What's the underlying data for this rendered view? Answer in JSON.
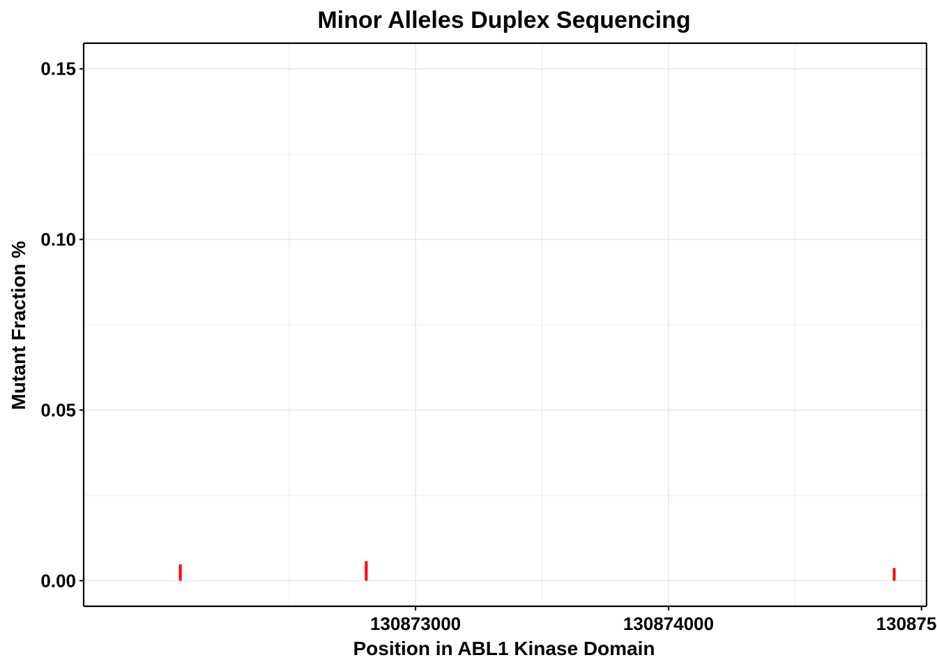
{
  "chart_data": {
    "type": "bar",
    "title": "Minor Alleles Duplex Sequencing",
    "xlabel": "Position in ABL1 Kinase Domain",
    "ylabel": "Mutant Fraction %",
    "xlim": [
      130871688,
      130875020
    ],
    "ylim": [
      -0.0075,
      0.1575
    ],
    "x_ticks": [
      130873000,
      130874000,
      130875000
    ],
    "x_tick_labels": [
      "130873000",
      "130874000",
      "130875000"
    ],
    "x_minor": [
      130872500,
      130873500,
      130874500
    ],
    "y_ticks": [
      0,
      0.05,
      0.1,
      0.15
    ],
    "y_tick_labels": [
      "0.00",
      "0.05",
      "0.10",
      "0.15"
    ],
    "y_minor": [
      0.025,
      0.075,
      0.125
    ],
    "grid": true,
    "color": "#ff0000",
    "series": [
      {
        "x": [
          130872070,
          130872805,
          130874892
        ],
        "values": [
          0.0048,
          0.0057,
          0.0037
        ]
      }
    ]
  }
}
